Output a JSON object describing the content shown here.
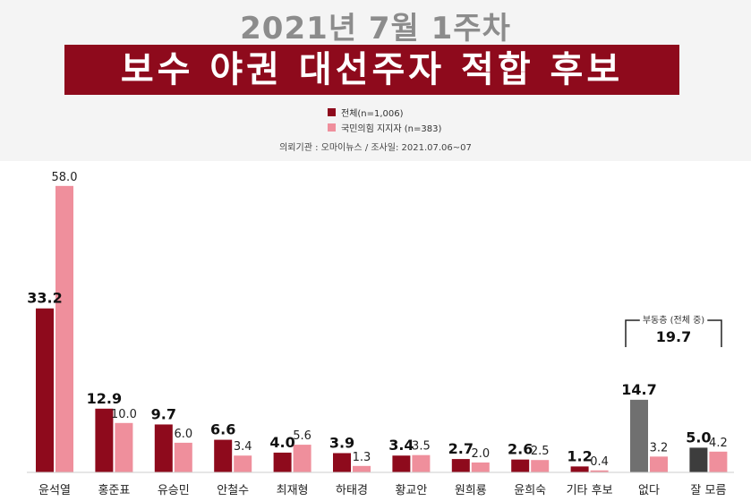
{
  "header": {
    "subtitle": "2021년 7월 1주차",
    "title": "보수 야권 대선주자 적합 후보",
    "source_text": "의뢰기관 : 오마이뉴스   /   조사일: 2021.07.06~07"
  },
  "chart_data": {
    "type": "bar",
    "categories": [
      "윤석열",
      "홍준표",
      "유승민",
      "안철수",
      "최재형",
      "하태경",
      "황교안",
      "원희룡",
      "윤희숙",
      "기타 후보",
      "없다",
      "잘 모름"
    ],
    "series": [
      {
        "name": "전체(n=1,006)",
        "values": [
          33.2,
          12.9,
          9.7,
          6.6,
          4.0,
          3.9,
          3.4,
          2.7,
          2.6,
          1.2,
          14.7,
          5.0
        ],
        "labels": [
          "33.2",
          "12.9",
          "9.7",
          "6.6",
          "4.0",
          "3.9",
          "3.4",
          "2.7",
          "2.6",
          "1.2",
          "14.7",
          "5.0"
        ]
      },
      {
        "name": "국민의힘 지지자 (n=383)",
        "values": [
          58.0,
          10.0,
          6.0,
          3.4,
          5.6,
          1.3,
          3.5,
          2.0,
          2.5,
          0.4,
          3.2,
          4.2
        ],
        "labels": [
          "58.0",
          "10.0",
          "6.0",
          "3.4",
          "5.6",
          "1.3",
          "3.5",
          "2.0",
          "2.5",
          "0.4",
          "3.2",
          "4.2"
        ]
      }
    ],
    "colors": {
      "series1": "#8e0a1c",
      "series2": "#ef8f9c",
      "none_series1": "#707070",
      "unknown_series1": "#3d3d3d"
    },
    "annotation": {
      "label": "부동층 (전체 중)",
      "value": "19.7"
    },
    "ylim": [
      0,
      60
    ]
  }
}
